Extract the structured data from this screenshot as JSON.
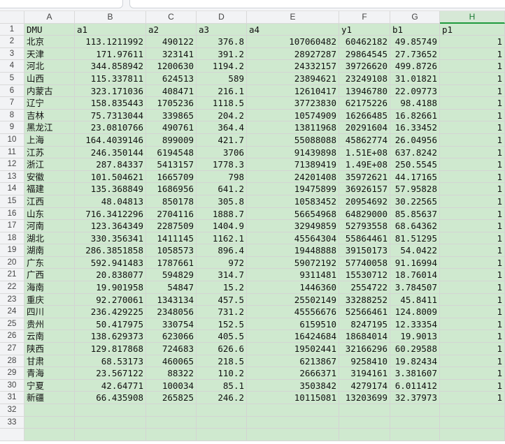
{
  "formula_bar": {
    "text": ""
  },
  "column_letters": [
    "A",
    "B",
    "C",
    "D",
    "E",
    "F",
    "G",
    "H"
  ],
  "selected_column": "H",
  "header_row": [
    "DMU",
    "a1",
    "a2",
    "a3",
    "a4",
    "y1",
    "b1",
    "p1"
  ],
  "rows": [
    [
      "北京",
      "113.1211992",
      "490122",
      "376.8",
      "107060482",
      "60462182",
      "49.85749",
      "1"
    ],
    [
      "天津",
      "171.97611",
      "323141",
      "391.2",
      "28927287",
      "29864545",
      "27.73652",
      "1"
    ],
    [
      "河北",
      "344.858942",
      "1200630",
      "1194.2",
      "24332157",
      "39726620",
      "499.8726",
      "1"
    ],
    [
      "山西",
      "115.337811",
      "624513",
      "589",
      "23894621",
      "23249108",
      "31.01821",
      "1"
    ],
    [
      "内蒙古",
      "323.171036",
      "408471",
      "216.1",
      "12610417",
      "13946780",
      "22.09773",
      "1"
    ],
    [
      "辽宁",
      "158.835443",
      "1705236",
      "1118.5",
      "37723830",
      "62175226",
      "98.4188",
      "1"
    ],
    [
      "吉林",
      "75.7313044",
      "339865",
      "204.2",
      "10574909",
      "16266485",
      "16.82661",
      "1"
    ],
    [
      "黑龙江",
      "23.0810766",
      "490761",
      "364.4",
      "13811968",
      "20291604",
      "16.33452",
      "1"
    ],
    [
      "上海",
      "164.4039146",
      "899009",
      "421.7",
      "55088088",
      "45862774",
      "26.04956",
      "1"
    ],
    [
      "江苏",
      "246.350144",
      "6194548",
      "3706",
      "91439898",
      "1.51E+08",
      "637.8242",
      "1"
    ],
    [
      "浙江",
      "287.84337",
      "5413157",
      "1778.3",
      "71389419",
      "1.49E+08",
      "250.5545",
      "1"
    ],
    [
      "安徽",
      "101.504621",
      "1665709",
      "798",
      "24201408",
      "35972621",
      "44.17165",
      "1"
    ],
    [
      "福建",
      "135.368849",
      "1686956",
      "641.2",
      "19475899",
      "36926157",
      "57.95828",
      "1"
    ],
    [
      "江西",
      "48.04813",
      "850178",
      "305.8",
      "10583452",
      "20954692",
      "30.22565",
      "1"
    ],
    [
      "山东",
      "716.3412296",
      "2704116",
      "1888.7",
      "56654968",
      "64829000",
      "85.85637",
      "1"
    ],
    [
      "河南",
      "123.364349",
      "2287509",
      "1404.9",
      "32949859",
      "52793558",
      "68.64362",
      "1"
    ],
    [
      "湖北",
      "330.356341",
      "1411145",
      "1162.1",
      "45564304",
      "55864461",
      "81.51295",
      "1"
    ],
    [
      "湖南",
      "286.3851858",
      "1058573",
      "896.4",
      "19448888",
      "39150173",
      "54.0422",
      "1"
    ],
    [
      "广东",
      "592.941483",
      "1787661",
      "972",
      "59072192",
      "57740058",
      "91.16994",
      "1"
    ],
    [
      "广西",
      "20.838077",
      "594829",
      "314.7",
      "9311481",
      "15530712",
      "18.76014",
      "1"
    ],
    [
      "海南",
      "19.901958",
      "54847",
      "15.2",
      "1446360",
      "2554722",
      "3.784507",
      "1"
    ],
    [
      "重庆",
      "92.270061",
      "1343134",
      "457.5",
      "25502149",
      "33288252",
      "45.8411",
      "1"
    ],
    [
      "四川",
      "236.429225",
      "2348056",
      "731.2",
      "45556676",
      "52566461",
      "124.8009",
      "1"
    ],
    [
      "贵州",
      "50.417975",
      "330754",
      "152.5",
      "6159510",
      "8247195",
      "12.33354",
      "1"
    ],
    [
      "云南",
      "138.629373",
      "623066",
      "405.5",
      "16424684",
      "18684014",
      "19.9013",
      "1"
    ],
    [
      "陕西",
      "129.817868",
      "724683",
      "626.6",
      "19502441",
      "32166296",
      "60.29588",
      "1"
    ],
    [
      "甘肃",
      "68.53173",
      "460065",
      "218.5",
      "6213867",
      "9258410",
      "19.82434",
      "1"
    ],
    [
      "青海",
      "23.567122",
      "88322",
      "110.2",
      "2666371",
      "3194161",
      "3.381607",
      "1"
    ],
    [
      "宁夏",
      "42.64771",
      "100034",
      "85.1",
      "3503842",
      "4279174",
      "6.011412",
      "1"
    ],
    [
      "新疆",
      "66.435908",
      "265825",
      "246.2",
      "10115081",
      "13203699",
      "32.37973",
      "1"
    ]
  ],
  "trailing_row_numbers": [
    "32",
    "33"
  ]
}
